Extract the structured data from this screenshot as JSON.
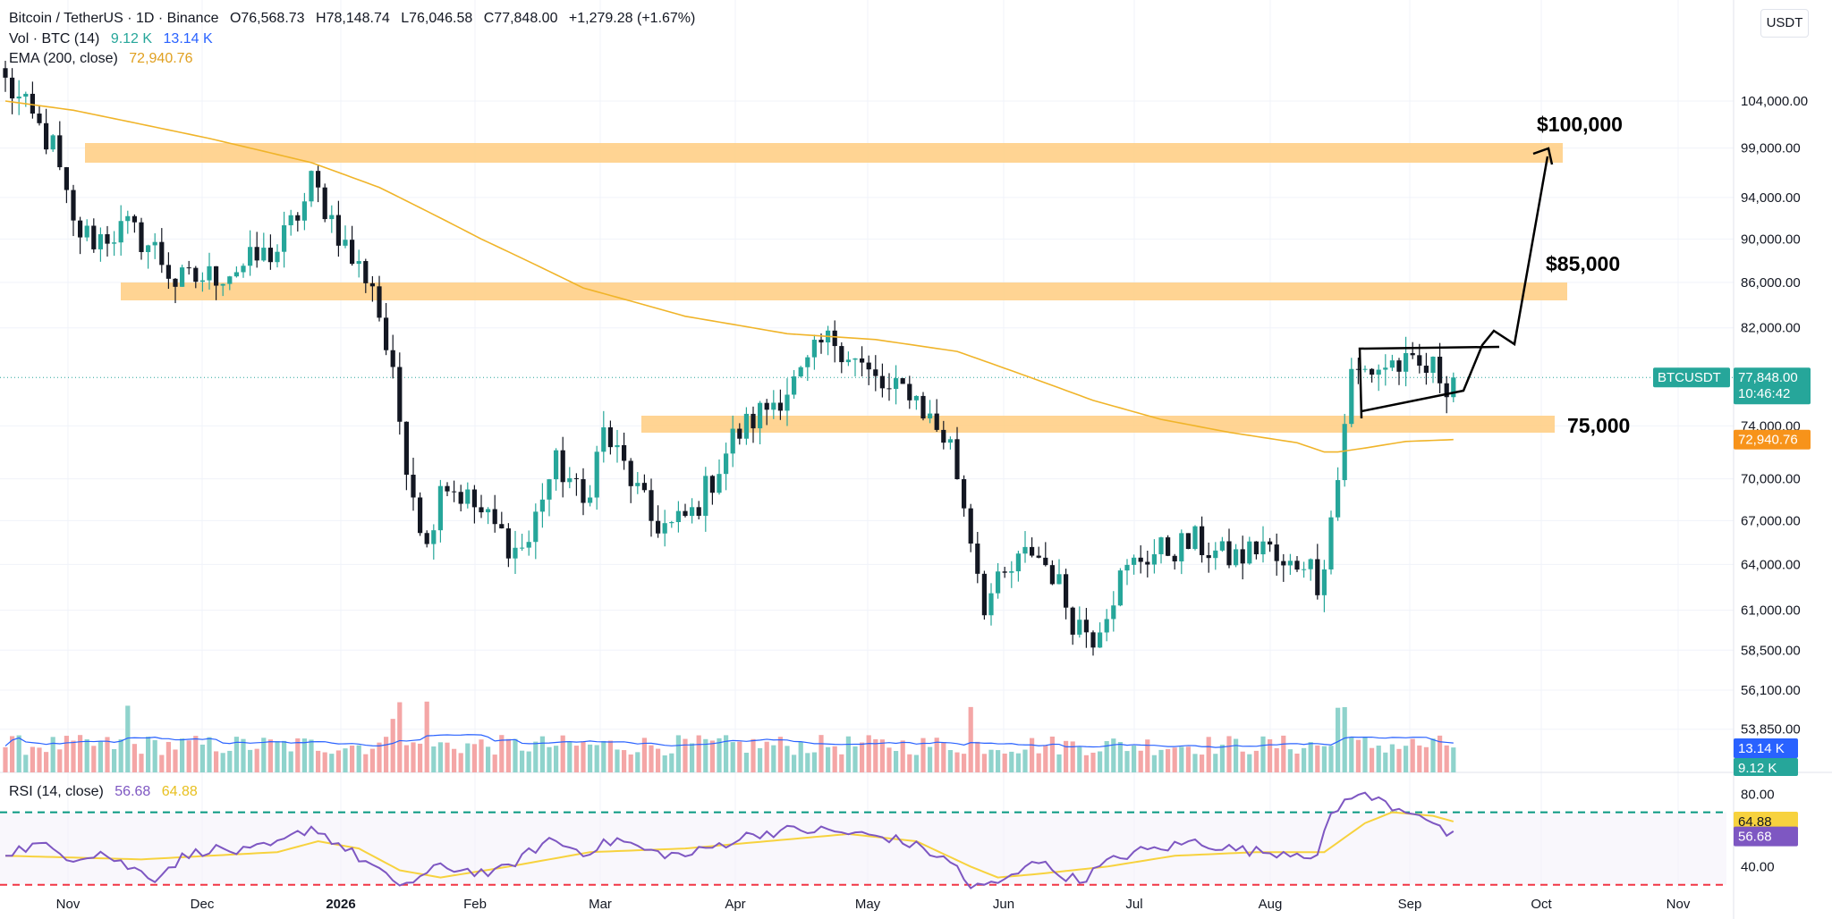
{
  "header": {
    "symbol": "Bitcoin / TetherUS · 1D · Binance",
    "o": "O76,568.73",
    "h": "H78,148.74",
    "l": "L76,046.58",
    "c": "C77,848.00",
    "change": "+1,279.28 (+1.67%)",
    "vol_label": "Vol · BTC (14)",
    "vol_value": "9.12 K",
    "vol_ma": "13.14 K",
    "ema_label": "EMA (200, close)",
    "ema_value": "72,940.76",
    "rsi_label": "RSI (14, close)",
    "rsi_value": "56.68",
    "rsi_ma": "64.88"
  },
  "currency": "USDT",
  "colors": {
    "up": "#26a69a",
    "down": "#131722",
    "band": "#ffcd80",
    "ema": "#f0b429",
    "rsi": "#7e57c2",
    "rsi_ma": "#f7d23e",
    "vol_up": "#8fd3cc",
    "vol_down": "#f4a6a6",
    "vol_ma": "#2962ff",
    "ob": "#089981",
    "os": "#f23645"
  },
  "annotations": [
    "$100,000",
    "$85,000",
    "75,000"
  ],
  "chart_data": [
    {
      "type": "candlestick",
      "title": "Bitcoin / TetherUS · 1D · Binance",
      "x_categories": [
        "Nov",
        "Dec",
        "2026",
        "Feb",
        "Mar",
        "Apr",
        "May",
        "Jun",
        "Jul",
        "Aug",
        "Sep",
        "Oct",
        "Nov"
      ],
      "y_ticks": [
        "104,000.00",
        "99,000.00",
        "94,000.00",
        "90,000.00",
        "86,000.00",
        "82,000.00",
        "74,000.00",
        "70,000.00",
        "67,000.00",
        "64,000.00",
        "61,000.00",
        "58,500.00",
        "56,100.00",
        "53,850.00"
      ],
      "y_scale": "log",
      "ylim": [
        54000,
        112000
      ],
      "price_anchors": [
        [
          0,
          106000
        ],
        [
          3,
          103000
        ],
        [
          7,
          99000
        ],
        [
          10,
          91000
        ],
        [
          13,
          90000
        ],
        [
          18,
          91000
        ],
        [
          22,
          89000
        ],
        [
          25,
          86000
        ],
        [
          30,
          86500
        ],
        [
          35,
          87500
        ],
        [
          40,
          89000
        ],
        [
          44,
          93500
        ],
        [
          45,
          95500
        ],
        [
          48,
          92000
        ],
        [
          51,
          88000
        ],
        [
          54,
          86000
        ],
        [
          57,
          77500
        ],
        [
          59,
          71500
        ],
        [
          61,
          67000
        ],
        [
          62,
          65000
        ],
        [
          64,
          70000
        ],
        [
          68,
          68500
        ],
        [
          71,
          67000
        ],
        [
          75,
          65000
        ],
        [
          77,
          65500
        ],
        [
          79,
          69000
        ],
        [
          81,
          71000
        ],
        [
          83,
          70000
        ],
        [
          85,
          68000
        ],
        [
          88,
          73500
        ],
        [
          92,
          70000
        ],
        [
          95,
          67000
        ],
        [
          98,
          66500
        ],
        [
          101,
          67500
        ],
        [
          104,
          70000
        ],
        [
          107,
          73000
        ],
        [
          110,
          74500
        ],
        [
          114,
          76500
        ],
        [
          117,
          77800
        ],
        [
          120,
          80500
        ],
        [
          122,
          81000
        ],
        [
          124,
          80000
        ],
        [
          127,
          78000
        ],
        [
          130,
          76500
        ],
        [
          133,
          77000
        ],
        [
          136,
          74500
        ],
        [
          139,
          72500
        ],
        [
          142,
          66000
        ],
        [
          144,
          61500
        ],
        [
          148,
          63500
        ],
        [
          151,
          65000
        ],
        [
          154,
          63500
        ],
        [
          157,
          60500
        ],
        [
          160,
          59500
        ],
        [
          164,
          63000
        ],
        [
          167,
          64500
        ],
        [
          171,
          65000
        ],
        [
          175,
          65500
        ],
        [
          179,
          64500
        ],
        [
          182,
          64500
        ],
        [
          185,
          65500
        ],
        [
          188,
          63500
        ],
        [
          191,
          64500
        ],
        [
          193,
          63000
        ],
        [
          194,
          64500
        ],
        [
          196,
          70000
        ],
        [
          197,
          74500
        ],
        [
          198,
          78000
        ],
        [
          201,
          78500
        ],
        [
          204,
          79000
        ],
        [
          207,
          78500
        ],
        [
          210,
          78500
        ],
        [
          212,
          77500
        ],
        [
          213,
          77848
        ]
      ],
      "last_price": "77,848.00",
      "countdown": "10:46:42",
      "symbol_tag": "BTCUSDT"
    },
    {
      "type": "line",
      "name": "EMA (200, close)",
      "anchors": [
        [
          0,
          104000
        ],
        [
          10,
          103000
        ],
        [
          30,
          100000
        ],
        [
          45,
          97500
        ],
        [
          55,
          95000
        ],
        [
          70,
          90000
        ],
        [
          85,
          85500
        ],
        [
          100,
          83000
        ],
        [
          115,
          81500
        ],
        [
          128,
          81000
        ],
        [
          140,
          80000
        ],
        [
          150,
          78000
        ],
        [
          160,
          76000
        ],
        [
          170,
          74500
        ],
        [
          180,
          73500
        ],
        [
          190,
          72700
        ],
        [
          194,
          72000
        ],
        [
          196,
          72000
        ],
        [
          200,
          72300
        ],
        [
          206,
          72800
        ],
        [
          213,
          72940.76
        ]
      ],
      "value_label": "72,940.76"
    },
    {
      "type": "bar",
      "name": "Vol · BTC (14)",
      "axis_labels": [
        "13.14 K",
        "9.12 K"
      ],
      "ma_label": "13.14 K",
      "last_label": "9.12 K"
    },
    {
      "type": "line",
      "name": "RSI (14, close)",
      "ylim": [
        20,
        90
      ],
      "y_ticks": [
        "80.00",
        "40.00"
      ],
      "overbought": 70,
      "oversold": 30,
      "rsi_anchors": [
        [
          0,
          48
        ],
        [
          5,
          52
        ],
        [
          10,
          45
        ],
        [
          14,
          48
        ],
        [
          18,
          40
        ],
        [
          22,
          34
        ],
        [
          26,
          45
        ],
        [
          30,
          50
        ],
        [
          35,
          48
        ],
        [
          40,
          52
        ],
        [
          45,
          62
        ],
        [
          48,
          55
        ],
        [
          52,
          45
        ],
        [
          55,
          38
        ],
        [
          57,
          30
        ],
        [
          60,
          32
        ],
        [
          64,
          40
        ],
        [
          68,
          38
        ],
        [
          72,
          36
        ],
        [
          76,
          45
        ],
        [
          80,
          55
        ],
        [
          85,
          48
        ],
        [
          90,
          55
        ],
        [
          95,
          48
        ],
        [
          100,
          46
        ],
        [
          105,
          52
        ],
        [
          110,
          58
        ],
        [
          115,
          60
        ],
        [
          120,
          60
        ],
        [
          125,
          58
        ],
        [
          130,
          56
        ],
        [
          135,
          50
        ],
        [
          140,
          40
        ],
        [
          142,
          28
        ],
        [
          145,
          30
        ],
        [
          148,
          34
        ],
        [
          151,
          45
        ],
        [
          154,
          38
        ],
        [
          158,
          32
        ],
        [
          162,
          42
        ],
        [
          166,
          48
        ],
        [
          170,
          50
        ],
        [
          175,
          54
        ],
        [
          180,
          50
        ],
        [
          185,
          48
        ],
        [
          190,
          48
        ],
        [
          193,
          46
        ],
        [
          195,
          68
        ],
        [
          198,
          80
        ],
        [
          201,
          78
        ],
        [
          205,
          72
        ],
        [
          208,
          70
        ],
        [
          211,
          60
        ],
        [
          213,
          56.68
        ]
      ],
      "ma_anchors": [
        [
          0,
          46
        ],
        [
          20,
          44
        ],
        [
          40,
          48
        ],
        [
          46,
          54
        ],
        [
          52,
          50
        ],
        [
          58,
          38
        ],
        [
          64,
          34
        ],
        [
          74,
          40
        ],
        [
          86,
          48
        ],
        [
          100,
          50
        ],
        [
          112,
          54
        ],
        [
          124,
          58
        ],
        [
          134,
          54
        ],
        [
          142,
          40
        ],
        [
          146,
          34
        ],
        [
          152,
          36
        ],
        [
          162,
          40
        ],
        [
          172,
          46
        ],
        [
          184,
          48
        ],
        [
          194,
          48
        ],
        [
          200,
          64
        ],
        [
          204,
          70
        ],
        [
          210,
          68
        ],
        [
          213,
          64.88
        ]
      ],
      "value_labels": [
        "64.88",
        "56.68"
      ]
    }
  ]
}
